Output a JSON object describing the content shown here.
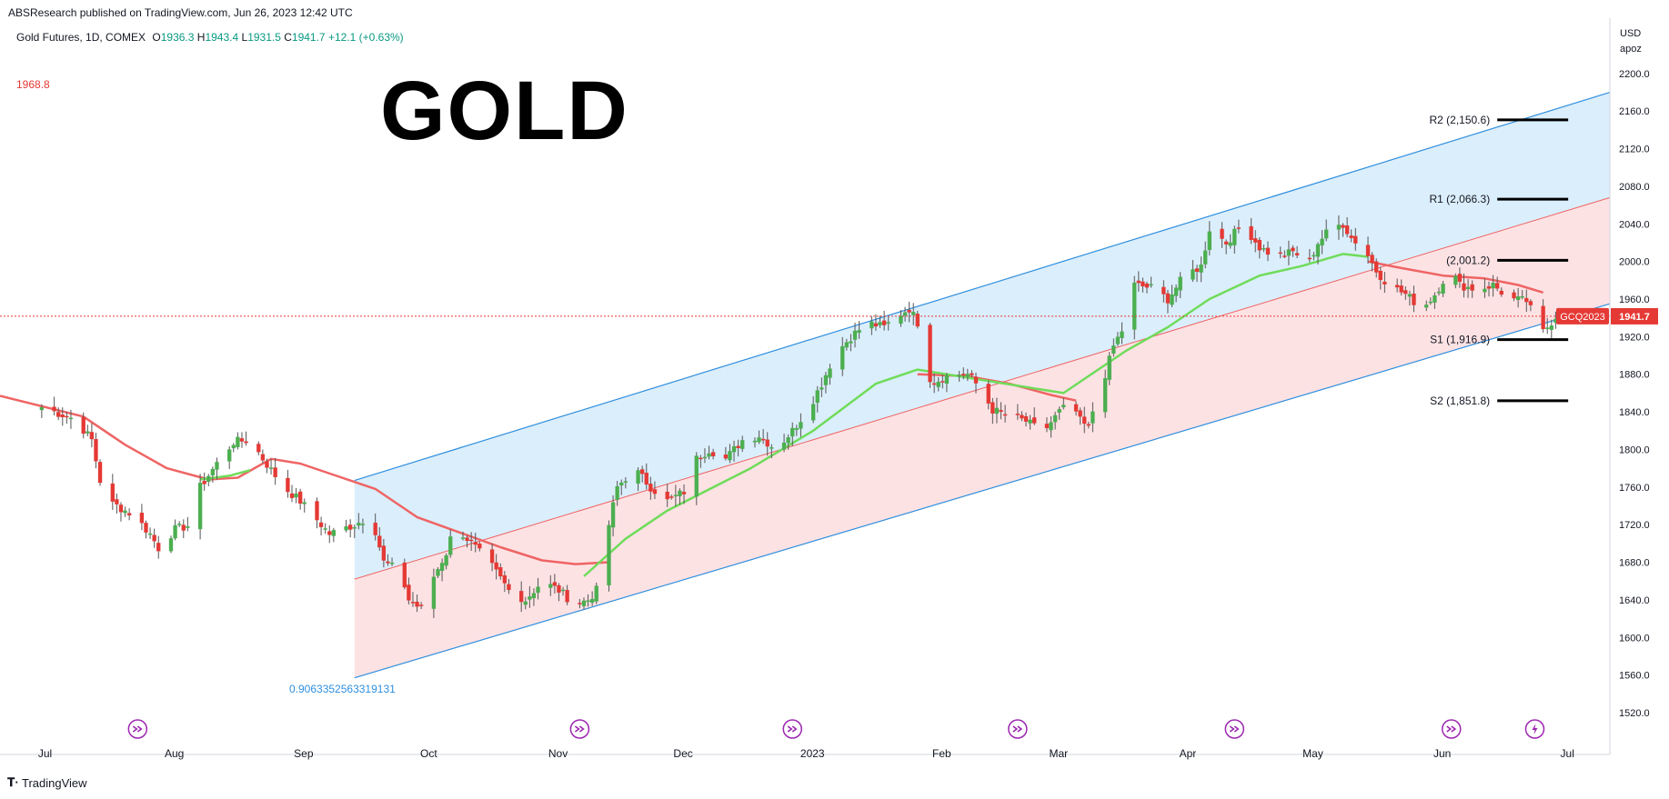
{
  "header": {
    "published": "ABSResearch published on TradingView.com, Jun 26, 2023 12:42 UTC"
  },
  "legend": {
    "symbol": "Gold Futures, 1D, COMEX",
    "open_label": "O",
    "open": "1936.3",
    "high_label": "H",
    "high": "1943.4",
    "low_label": "L",
    "low": "1931.5",
    "close_label": "C",
    "close": "1941.7",
    "change": "+12.1 (+0.63%)"
  },
  "overlay_text": {
    "big_title": "GOLD",
    "left_value": "1968.8",
    "fib_value": "0.9063352563319131"
  },
  "axis": {
    "currency": "USD",
    "unit": "apoz",
    "ticker_tag": "GCQ2023",
    "price_tag": "1941.7"
  },
  "footer": {
    "brand": "TradingView"
  },
  "colors": {
    "up": "#4caf50",
    "down": "#e53935",
    "ma_fast": "#6fdc5a",
    "ma_slow": "#ef6464",
    "channel_upper_fill": "#dbeefb",
    "channel_lower_fill": "#fde2e4",
    "channel_line": "#2f8fde",
    "mid_line": "#ef6464",
    "level_line": "#000000",
    "tag_bg": "#e53935",
    "icon": "#9c27b0"
  },
  "chart_data": {
    "type": "candlestick",
    "ylim": [
      1490,
      2225
    ],
    "yticks": [
      1520,
      1560,
      1600,
      1640,
      1680,
      1720,
      1760,
      1800,
      1840,
      1880,
      1920,
      1960,
      2000,
      2040,
      2080,
      2120,
      2160,
      2200
    ],
    "months": [
      {
        "label": "Jul",
        "t": 0.8
      },
      {
        "label": "Aug",
        "t": 31.8
      },
      {
        "label": "Sep",
        "t": 62.8
      },
      {
        "label": "Oct",
        "t": 92.8
      },
      {
        "label": "Nov",
        "t": 123.8
      },
      {
        "label": "Dec",
        "t": 153.8
      },
      {
        "label": "2023",
        "t": 184.8
      },
      {
        "label": "Feb",
        "t": 215.8
      },
      {
        "label": "Mar",
        "t": 243.8
      },
      {
        "label": "Apr",
        "t": 274.8
      },
      {
        "label": "May",
        "t": 304.8
      },
      {
        "label": "Jun",
        "t": 335.8
      },
      {
        "label": "Jul",
        "t": 365.8
      }
    ],
    "x_range": [
      -10,
      376
    ],
    "anchors": [
      [
        0,
        1845
      ],
      [
        8,
        1832
      ],
      [
        12,
        1810
      ],
      [
        15,
        1745
      ],
      [
        18,
        1740
      ],
      [
        22,
        1730
      ],
      [
        26,
        1710
      ],
      [
        28,
        1695
      ],
      [
        32,
        1715
      ],
      [
        36,
        1720
      ],
      [
        38,
        1760
      ],
      [
        42,
        1785
      ],
      [
        46,
        1808
      ],
      [
        50,
        1810
      ],
      [
        53,
        1790
      ],
      [
        58,
        1760
      ],
      [
        62,
        1745
      ],
      [
        65,
        1730
      ],
      [
        69,
        1710
      ],
      [
        72,
        1715
      ],
      [
        75,
        1720
      ],
      [
        79,
        1730
      ],
      [
        82,
        1680
      ],
      [
        86,
        1670
      ],
      [
        88,
        1640
      ],
      [
        91,
        1630
      ],
      [
        94,
        1665
      ],
      [
        97,
        1690
      ],
      [
        99,
        1720
      ],
      [
        101,
        1710
      ],
      [
        104,
        1695
      ],
      [
        108,
        1675
      ],
      [
        112,
        1650
      ],
      [
        116,
        1640
      ],
      [
        120,
        1660
      ],
      [
        124,
        1650
      ],
      [
        128,
        1635
      ],
      [
        131,
        1640
      ],
      [
        133,
        1650
      ],
      [
        135,
        1700
      ],
      [
        138,
        1760
      ],
      [
        142,
        1780
      ],
      [
        146,
        1760
      ],
      [
        150,
        1745
      ],
      [
        154,
        1755
      ],
      [
        157,
        1790
      ],
      [
        160,
        1800
      ],
      [
        164,
        1790
      ],
      [
        168,
        1810
      ],
      [
        172,
        1815
      ],
      [
        176,
        1800
      ],
      [
        180,
        1820
      ],
      [
        184,
        1845
      ],
      [
        187,
        1870
      ],
      [
        190,
        1900
      ],
      [
        194,
        1920
      ],
      [
        198,
        1935
      ],
      [
        202,
        1930
      ],
      [
        205,
        1942
      ],
      [
        208,
        1950
      ],
      [
        210,
        1935
      ],
      [
        212,
        1880
      ],
      [
        214,
        1872
      ],
      [
        218,
        1880
      ],
      [
        222,
        1880
      ],
      [
        225,
        1865
      ],
      [
        228,
        1842
      ],
      [
        232,
        1835
      ],
      [
        236,
        1830
      ],
      [
        240,
        1818
      ],
      [
        244,
        1840
      ],
      [
        247,
        1850
      ],
      [
        249,
        1830
      ],
      [
        251,
        1822
      ],
      [
        253,
        1860
      ],
      [
        255,
        1880
      ],
      [
        257,
        1910
      ],
      [
        260,
        1935
      ],
      [
        262,
        1975
      ],
      [
        266,
        1972
      ],
      [
        270,
        1960
      ],
      [
        274,
        1985
      ],
      [
        278,
        1995
      ],
      [
        280,
        2035
      ],
      [
        284,
        2020
      ],
      [
        288,
        2040
      ],
      [
        292,
        2015
      ],
      [
        296,
        2005
      ],
      [
        300,
        2010
      ],
      [
        304,
        2000
      ],
      [
        306,
        2020
      ],
      [
        309,
        2035
      ],
      [
        312,
        2040
      ],
      [
        314,
        2025
      ],
      [
        317,
        2015
      ],
      [
        320,
        1990
      ],
      [
        323,
        1975
      ],
      [
        327,
        1965
      ],
      [
        331,
        1950
      ],
      [
        334,
        1965
      ],
      [
        336,
        1980
      ],
      [
        338,
        1990
      ],
      [
        340,
        1975
      ],
      [
        344,
        1970
      ],
      [
        348,
        1975
      ],
      [
        352,
        1960
      ],
      [
        356,
        1958
      ],
      [
        358,
        1940
      ],
      [
        360,
        1925
      ],
      [
        362,
        1936
      ],
      [
        363,
        1942
      ]
    ],
    "ma_fast": [
      [
        38,
        1768
      ],
      [
        45,
        1772
      ],
      [
        50,
        1778
      ],
      [
        130,
        1665
      ],
      [
        140,
        1705
      ],
      [
        150,
        1735
      ],
      [
        170,
        1780
      ],
      [
        185,
        1820
      ],
      [
        200,
        1870
      ],
      [
        210,
        1885
      ],
      [
        245,
        1860
      ],
      [
        250,
        1875
      ],
      [
        260,
        1905
      ],
      [
        270,
        1930
      ],
      [
        280,
        1960
      ],
      [
        292,
        1985
      ],
      [
        302,
        1995
      ],
      [
        312,
        2008
      ],
      [
        318,
        2005
      ]
    ],
    "ma_slow": [
      [
        -10,
        1857
      ],
      [
        10,
        1835
      ],
      [
        20,
        1805
      ],
      [
        30,
        1780
      ],
      [
        40,
        1768
      ],
      [
        47,
        1770
      ],
      [
        55,
        1790
      ],
      [
        62,
        1785
      ],
      [
        72,
        1770
      ],
      [
        80,
        1758
      ],
      [
        90,
        1728
      ],
      [
        100,
        1712
      ],
      [
        110,
        1696
      ],
      [
        120,
        1682
      ],
      [
        128,
        1678
      ],
      [
        136,
        1680
      ],
      [
        210,
        1880
      ],
      [
        222,
        1878
      ],
      [
        232,
        1870
      ],
      [
        242,
        1858
      ],
      [
        248,
        1852
      ],
      [
        318,
        2000
      ],
      [
        326,
        1993
      ],
      [
        336,
        1985
      ],
      [
        346,
        1982
      ],
      [
        354,
        1975
      ],
      [
        360,
        1967
      ]
    ],
    "channel": {
      "t_start": 75,
      "t_end": 376,
      "upper": [
        1767,
        2180
      ],
      "mid": [
        1662,
        2068
      ],
      "lower": [
        1557,
        1955
      ]
    },
    "levels": [
      {
        "label": "R2 (2,150.6)",
        "value": 2150.6
      },
      {
        "label": "R1 (2,066.3)",
        "value": 2066.3
      },
      {
        "label": "(2,001.2)",
        "value": 2001.2
      },
      {
        "label": "S1 (1,916.9)",
        "value": 1916.9
      },
      {
        "label": "S2 (1,851.8)",
        "value": 1851.8
      }
    ],
    "level_t": [
      349,
      366
    ],
    "last_price": 1941.7,
    "event_markers_t": [
      23,
      129,
      180,
      234,
      286,
      338,
      358
    ]
  }
}
